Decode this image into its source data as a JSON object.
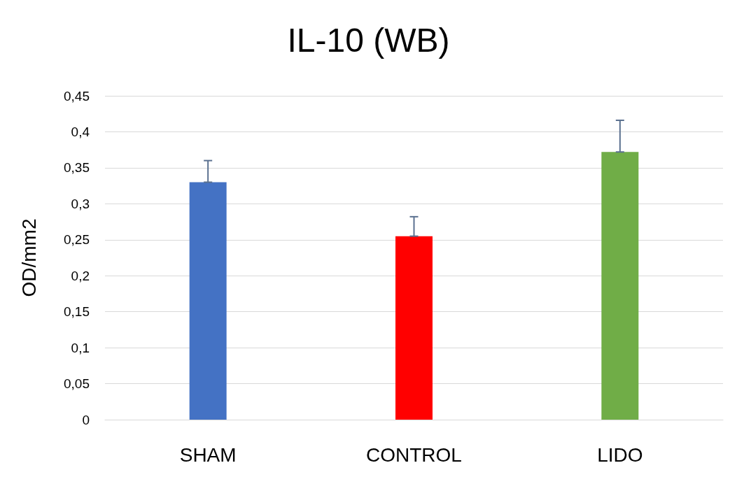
{
  "chart_data": {
    "type": "bar",
    "title": "IL-10 (WB)",
    "ylabel": "OD/mm2",
    "categories": [
      "SHAM",
      "CONTROL",
      "LIDO"
    ],
    "values": [
      0.33,
      0.255,
      0.372
    ],
    "colors": [
      "#4472c4",
      "#ff0000",
      "#70ad47"
    ],
    "errors": [
      [
        0.33,
        0.36
      ],
      [
        0.255,
        0.282
      ],
      [
        0.372,
        0.416
      ]
    ],
    "ylim": [
      0,
      0.45
    ],
    "yticks": [
      {
        "value": 0,
        "label": "0"
      },
      {
        "value": 0.05,
        "label": "0,05"
      },
      {
        "value": 0.1,
        "label": "0,1"
      },
      {
        "value": 0.15,
        "label": "0,15"
      },
      {
        "value": 0.2,
        "label": "0,2"
      },
      {
        "value": 0.25,
        "label": "0,25"
      },
      {
        "value": 0.3,
        "label": "0,3"
      },
      {
        "value": 0.35,
        "label": "0,35"
      },
      {
        "value": 0.4,
        "label": "0,4"
      },
      {
        "value": 0.45,
        "label": "0,45"
      }
    ],
    "grid": "y"
  }
}
